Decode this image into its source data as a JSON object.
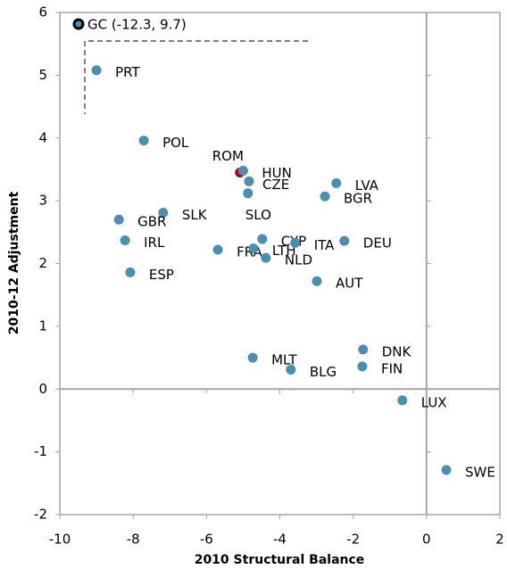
{
  "chart_data": {
    "type": "scatter",
    "xlabel": "2010 Structural Balance",
    "ylabel": "2010-12 Adjustment",
    "labels": [
      "PRT",
      "POL",
      "ROM",
      "HUN",
      "CZE",
      "SLO",
      "LVA",
      "BGR",
      "SLK",
      "GBR",
      "IRL",
      "ESP",
      "FRA",
      "LTH",
      "CYP",
      "NLD",
      "ITA",
      "DEU",
      "AUT",
      "MLT",
      "BLG",
      "DNK",
      "FIN",
      "LUX",
      "SWE"
    ],
    "x": [
      -9.0,
      -7.71,
      -5.09,
      -5.0,
      -4.84,
      -4.87,
      -2.46,
      -2.77,
      -7.18,
      -8.39,
      -8.22,
      -8.08,
      -5.69,
      -4.72,
      -4.48,
      -4.38,
      -3.58,
      -2.24,
      -2.99,
      -4.74,
      -3.7,
      -1.73,
      -1.75,
      -0.66,
      0.54
    ],
    "y": [
      5.08,
      3.96,
      3.45,
      3.48,
      3.31,
      3.12,
      3.28,
      3.07,
      2.81,
      2.7,
      2.37,
      1.86,
      2.22,
      2.24,
      2.39,
      2.09,
      2.33,
      2.36,
      1.72,
      0.5,
      0.31,
      0.63,
      0.36,
      -0.18,
      -1.29
    ],
    "colors": [
      "#4a8fb0",
      "#4a8fb0",
      "#c00000",
      "#4a8fb0",
      "#4a8fb0",
      "#4a8fb0",
      "#4a8fb0",
      "#4a8fb0",
      "#4a8fb0",
      "#4a8fb0",
      "#4a8fb0",
      "#4a8fb0",
      "#4a8fb0",
      "#4a8fb0",
      "#4a8fb0",
      "#4a8fb0",
      "#4a8fb0",
      "#4a8fb0",
      "#4a8fb0",
      "#4a8fb0",
      "#4a8fb0",
      "#4a8fb0",
      "#4a8fb0",
      "#4a8fb0",
      "#4a8fb0"
    ],
    "annotation": "GC (-12.3, 9.7)",
    "xlim": [
      -10,
      2
    ],
    "xticks": [
      -10,
      -8,
      -6,
      -4,
      -2,
      0,
      2
    ],
    "ylim": [
      -2,
      6
    ],
    "yticks": [
      -2,
      -1,
      0,
      1,
      2,
      3,
      4,
      5,
      6
    ]
  }
}
